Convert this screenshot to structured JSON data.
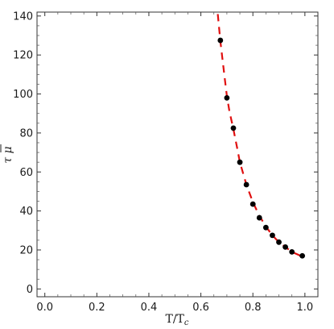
{
  "chart_data": {
    "type": "scatter",
    "title": "",
    "xlabel": "T/T",
    "xlabel_sub": "c",
    "ylabel": "τ μ",
    "xlim": [
      -0.03,
      1.05
    ],
    "ylim": [
      -4,
      142
    ],
    "x_ticks": [
      0.0,
      0.2,
      0.4,
      0.6,
      0.8,
      1.0
    ],
    "x_tick_labels": [
      "0.0",
      "0.2",
      "0.4",
      "0.6",
      "0.8",
      "1.0"
    ],
    "y_ticks": [
      0,
      20,
      40,
      60,
      80,
      100,
      120,
      140
    ],
    "y_tick_labels": [
      "0",
      "20",
      "40",
      "60",
      "80",
      "100",
      "120",
      "140"
    ],
    "grid": false,
    "series": [
      {
        "kind": "points",
        "color": "#000000",
        "x": [
          0.675,
          0.7,
          0.725,
          0.75,
          0.775,
          0.8,
          0.825,
          0.85,
          0.875,
          0.9,
          0.925,
          0.95,
          0.99
        ],
        "y": [
          127.5,
          98,
          82.5,
          65,
          53.5,
          43.5,
          36.5,
          31.5,
          27.5,
          24,
          21.5,
          19,
          17
        ]
      },
      {
        "kind": "dashed-fit",
        "color": "#e01010",
        "x": [
          0.665,
          0.675,
          0.69,
          0.7,
          0.71,
          0.725,
          0.74,
          0.75,
          0.775,
          0.8,
          0.825,
          0.85,
          0.875,
          0.9,
          0.925,
          0.95,
          0.975,
          0.99
        ],
        "y": [
          141,
          127,
          110,
          99,
          91,
          82,
          72,
          65,
          53.5,
          44.5,
          37.5,
          32,
          27.5,
          24,
          21.5,
          19,
          17.5,
          16.5
        ]
      }
    ]
  }
}
